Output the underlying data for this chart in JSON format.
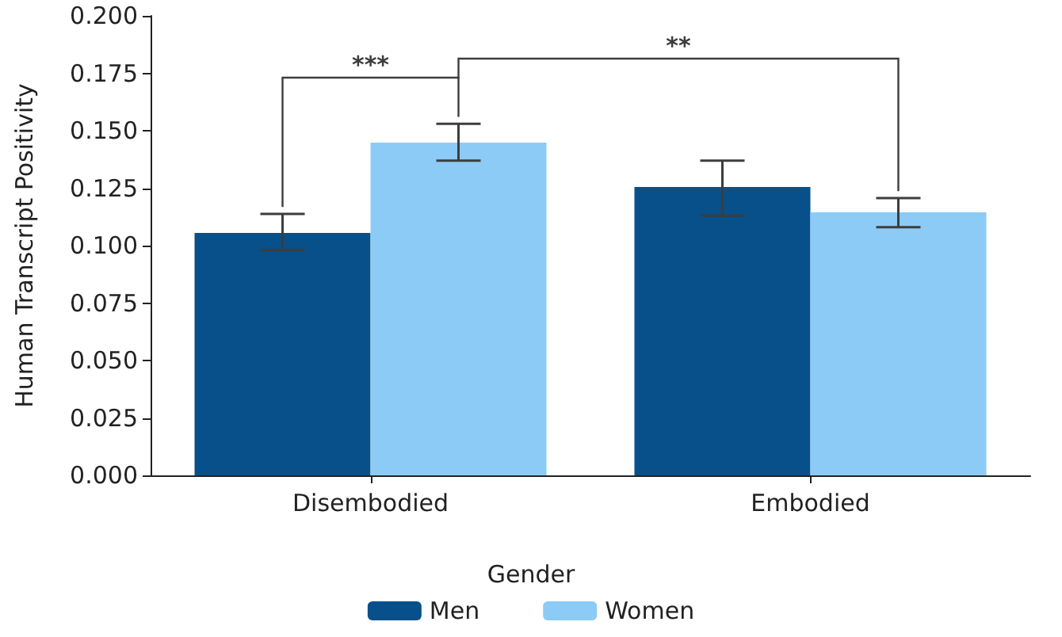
{
  "chart_data": {
    "type": "bar",
    "ylabel": "Human Transcript Positivity",
    "legend_title": "Gender",
    "categories": [
      "Disembodied",
      "Embodied"
    ],
    "series": [
      {
        "name": "Men",
        "color": "#08508a",
        "values": [
          0.1055,
          0.1255
        ],
        "errors": [
          [
            0.098,
            0.1138
          ],
          [
            0.113,
            0.137
          ]
        ]
      },
      {
        "name": "Women",
        "color": "#8ccbf5",
        "values": [
          0.1448,
          0.1145
        ],
        "errors": [
          [
            0.137,
            0.153
          ],
          [
            0.108,
            0.1207
          ]
        ]
      }
    ],
    "ylim": [
      0,
      0.2
    ],
    "yticks": [
      {
        "value": 0,
        "label": "0.000"
      },
      {
        "value": 0.025,
        "label": "0.025"
      },
      {
        "value": 0.05,
        "label": "0.050"
      },
      {
        "value": 0.075,
        "label": "0.075"
      },
      {
        "value": 0.1,
        "label": "0.100"
      },
      {
        "value": 0.125,
        "label": "0.125"
      },
      {
        "value": 0.15,
        "label": "0.150"
      },
      {
        "value": 0.175,
        "label": "0.175"
      },
      {
        "value": 0.2,
        "label": "0.200"
      }
    ],
    "grid": false,
    "legend": "bottom",
    "annotations": [
      "***",
      "**"
    ]
  }
}
